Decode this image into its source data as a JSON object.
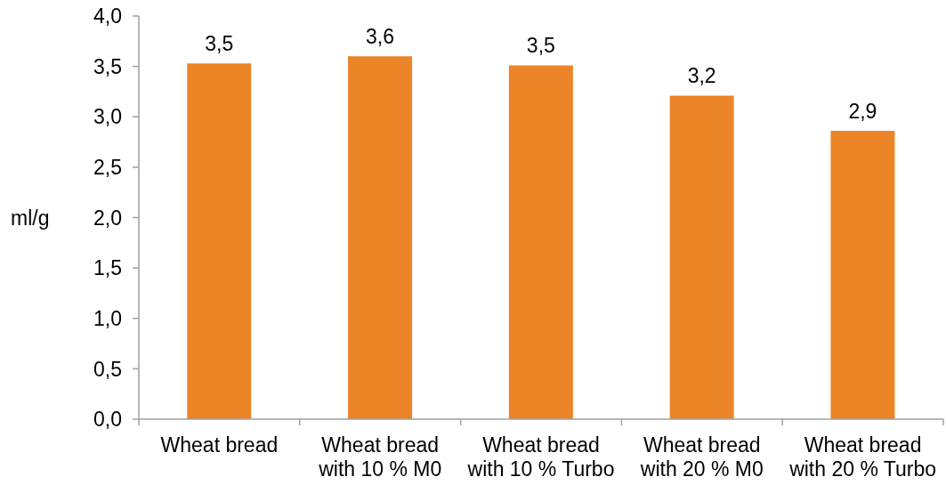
{
  "chart_data": {
    "type": "bar",
    "categories": [
      "Wheat bread",
      "Wheat bread with 10 % M0",
      "Wheat bread with 10 % Turbo",
      "Wheat bread with 20 % M0",
      "Wheat bread with 20 % Turbo"
    ],
    "values": [
      3.53,
      3.6,
      3.51,
      3.21,
      2.86
    ],
    "value_labels": [
      "3,5",
      "3,6",
      "3,5",
      "3,2",
      "2,9"
    ],
    "color": "#ec8428",
    "ylabel": "ml/g",
    "ylim": [
      0,
      4
    ],
    "yticks": [
      {
        "value": 0,
        "label": "0,0"
      },
      {
        "value": 0.5,
        "label": "0,5"
      },
      {
        "value": 1,
        "label": "1,0"
      },
      {
        "value": 1.5,
        "label": "1,5"
      },
      {
        "value": 2,
        "label": "2,0"
      },
      {
        "value": 2.5,
        "label": "2,5"
      },
      {
        "value": 3,
        "label": "3,0"
      },
      {
        "value": 3.5,
        "label": "3,5"
      },
      {
        "value": 4,
        "label": "4,0"
      }
    ]
  }
}
